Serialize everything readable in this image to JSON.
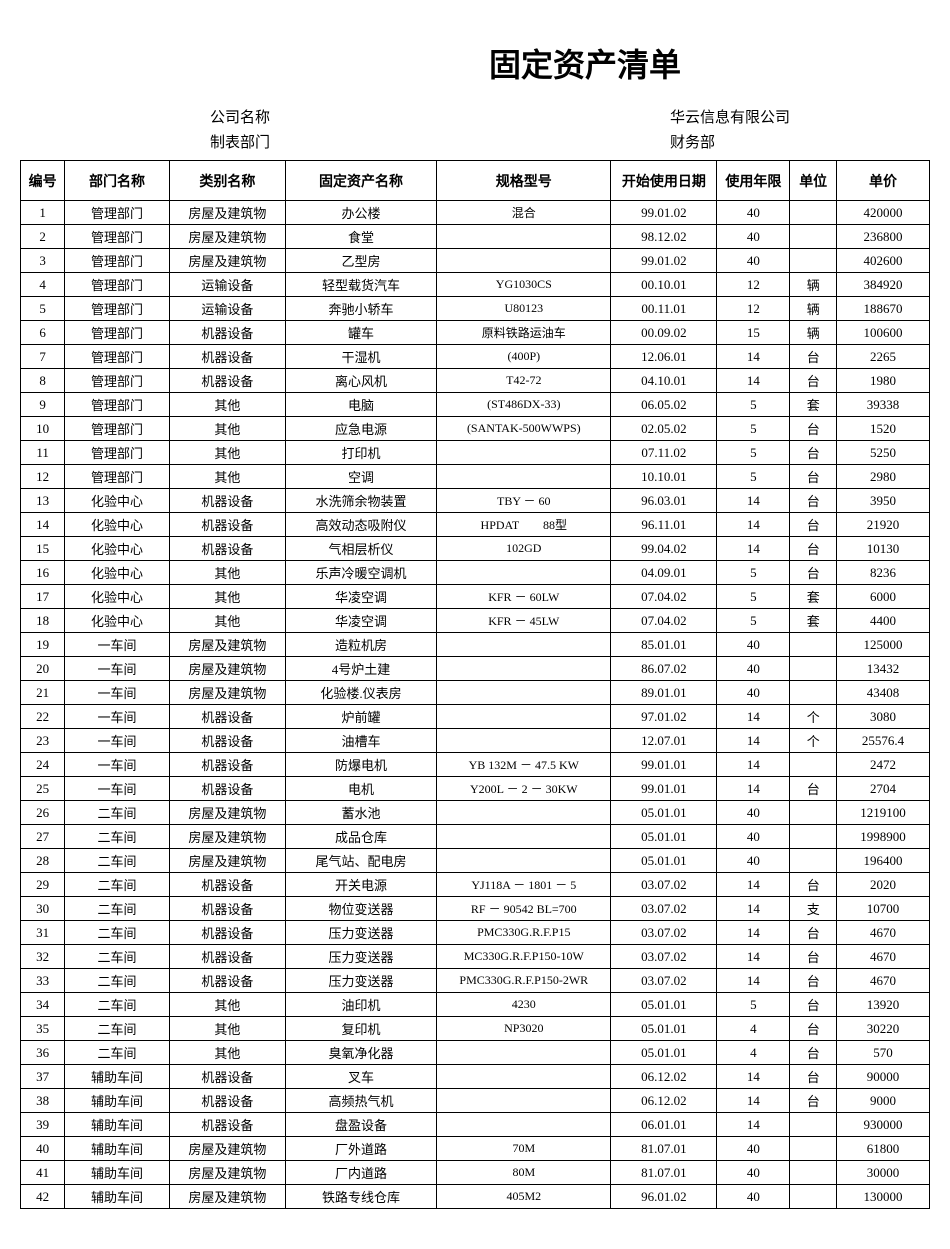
{
  "title": "固定资产清单",
  "meta": {
    "company_label": "公司名称",
    "company_value": "华云信息有限公司",
    "dept_label": "制表部门",
    "dept_value": "财务部"
  },
  "headers": {
    "id": "编号",
    "dept": "部门名称",
    "category": "类别名称",
    "asset": "固定资产名称",
    "spec": "规格型号",
    "date": "开始使用日期",
    "life": "使用年限",
    "unit": "单位",
    "price": "单价"
  },
  "rows": [
    {
      "id": "1",
      "dept": "管理部门",
      "cat": "房屋及建筑物",
      "asset": "办公楼",
      "spec": "混合",
      "date": "99.01.02",
      "life": "40",
      "unit": "",
      "price": "420000"
    },
    {
      "id": "2",
      "dept": "管理部门",
      "cat": "房屋及建筑物",
      "asset": "食堂",
      "spec": "",
      "date": "98.12.02",
      "life": "40",
      "unit": "",
      "price": "236800"
    },
    {
      "id": "3",
      "dept": "管理部门",
      "cat": "房屋及建筑物",
      "asset": "乙型房",
      "spec": "",
      "date": "99.01.02",
      "life": "40",
      "unit": "",
      "price": "402600"
    },
    {
      "id": "4",
      "dept": "管理部门",
      "cat": "运输设备",
      "asset": "轻型载货汽车",
      "spec": "YG1030CS",
      "date": "00.10.01",
      "life": "12",
      "unit": "辆",
      "price": "384920"
    },
    {
      "id": "5",
      "dept": "管理部门",
      "cat": "运输设备",
      "asset": "奔驰小轿车",
      "spec": "U80123",
      "date": "00.11.01",
      "life": "12",
      "unit": "辆",
      "price": "188670"
    },
    {
      "id": "6",
      "dept": "管理部门",
      "cat": "机器设备",
      "asset": "罐车",
      "spec": "原料铁路运油车",
      "date": "00.09.02",
      "life": "15",
      "unit": "辆",
      "price": "100600"
    },
    {
      "id": "7",
      "dept": "管理部门",
      "cat": "机器设备",
      "asset": "干湿机",
      "spec": "(400P)",
      "date": "12.06.01",
      "life": "14",
      "unit": "台",
      "price": "2265"
    },
    {
      "id": "8",
      "dept": "管理部门",
      "cat": "机器设备",
      "asset": "离心风机",
      "spec": "T42-72",
      "date": "04.10.01",
      "life": "14",
      "unit": "台",
      "price": "1980"
    },
    {
      "id": "9",
      "dept": "管理部门",
      "cat": "其他",
      "asset": "电脑",
      "spec": "(ST486DX-33)",
      "date": "06.05.02",
      "life": "5",
      "unit": "套",
      "price": "39338"
    },
    {
      "id": "10",
      "dept": "管理部门",
      "cat": "其他",
      "asset": "应急电源",
      "spec": "(SANTAK-500WWPS)",
      "date": "02.05.02",
      "life": "5",
      "unit": "台",
      "price": "1520"
    },
    {
      "id": "11",
      "dept": "管理部门",
      "cat": "其他",
      "asset": "打印机",
      "spec": "",
      "date": "07.11.02",
      "life": "5",
      "unit": "台",
      "price": "5250"
    },
    {
      "id": "12",
      "dept": "管理部门",
      "cat": "其他",
      "asset": "空调",
      "spec": "",
      "date": "10.10.01",
      "life": "5",
      "unit": "台",
      "price": "2980"
    },
    {
      "id": "13",
      "dept": "化验中心",
      "cat": "机器设备",
      "asset": "水洗筛余物装置",
      "spec": "TBY － 60",
      "date": "96.03.01",
      "life": "14",
      "unit": "台",
      "price": "3950"
    },
    {
      "id": "14",
      "dept": "化验中心",
      "cat": "机器设备",
      "asset": "高效动态吸附仪",
      "spec": "HPDAT　　88型",
      "date": "96.11.01",
      "life": "14",
      "unit": "台",
      "price": "21920"
    },
    {
      "id": "15",
      "dept": "化验中心",
      "cat": "机器设备",
      "asset": "气相层析仪",
      "spec": "102GD",
      "date": "99.04.02",
      "life": "14",
      "unit": "台",
      "price": "10130"
    },
    {
      "id": "16",
      "dept": "化验中心",
      "cat": "其他",
      "asset": "乐声冷暖空调机",
      "spec": "",
      "date": "04.09.01",
      "life": "5",
      "unit": "台",
      "price": "8236"
    },
    {
      "id": "17",
      "dept": "化验中心",
      "cat": "其他",
      "asset": "华凌空调",
      "spec": "KFR － 60LW",
      "date": "07.04.02",
      "life": "5",
      "unit": "套",
      "price": "6000"
    },
    {
      "id": "18",
      "dept": "化验中心",
      "cat": "其他",
      "asset": "华凌空调",
      "spec": "KFR － 45LW",
      "date": "07.04.02",
      "life": "5",
      "unit": "套",
      "price": "4400"
    },
    {
      "id": "19",
      "dept": "一车间",
      "cat": "房屋及建筑物",
      "asset": "造粒机房",
      "spec": "",
      "date": "85.01.01",
      "life": "40",
      "unit": "",
      "price": "125000"
    },
    {
      "id": "20",
      "dept": "一车间",
      "cat": "房屋及建筑物",
      "asset": "4号炉土建",
      "spec": "",
      "date": "86.07.02",
      "life": "40",
      "unit": "",
      "price": "13432"
    },
    {
      "id": "21",
      "dept": "一车间",
      "cat": "房屋及建筑物",
      "asset": "化验楼.仪表房",
      "spec": "",
      "date": "89.01.01",
      "life": "40",
      "unit": "",
      "price": "43408"
    },
    {
      "id": "22",
      "dept": "一车间",
      "cat": "机器设备",
      "asset": "炉前罐",
      "spec": "",
      "date": "97.01.02",
      "life": "14",
      "unit": "个",
      "price": "3080"
    },
    {
      "id": "23",
      "dept": "一车间",
      "cat": "机器设备",
      "asset": "油槽车",
      "spec": "",
      "date": "12.07.01",
      "life": "14",
      "unit": "个",
      "price": "25576.4"
    },
    {
      "id": "24",
      "dept": "一车间",
      "cat": "机器设备",
      "asset": "防爆电机",
      "spec": "YB 132M － 47.5 KW",
      "date": "99.01.01",
      "life": "14",
      "unit": "",
      "price": "2472"
    },
    {
      "id": "25",
      "dept": "一车间",
      "cat": "机器设备",
      "asset": "电机",
      "spec": "Y200L － 2 － 30KW",
      "date": "99.01.01",
      "life": "14",
      "unit": "台",
      "price": "2704"
    },
    {
      "id": "26",
      "dept": "二车间",
      "cat": "房屋及建筑物",
      "asset": "蓄水池",
      "spec": "",
      "date": "05.01.01",
      "life": "40",
      "unit": "",
      "price": "1219100"
    },
    {
      "id": "27",
      "dept": "二车间",
      "cat": "房屋及建筑物",
      "asset": "成品仓库",
      "spec": "",
      "date": "05.01.01",
      "life": "40",
      "unit": "",
      "price": "1998900"
    },
    {
      "id": "28",
      "dept": "二车间",
      "cat": "房屋及建筑物",
      "asset": "尾气站、配电房",
      "spec": "",
      "date": "05.01.01",
      "life": "40",
      "unit": "",
      "price": "196400"
    },
    {
      "id": "29",
      "dept": "二车间",
      "cat": "机器设备",
      "asset": "开关电源",
      "spec": "YJ118A － 1801 － 5",
      "date": "03.07.02",
      "life": "14",
      "unit": "台",
      "price": "2020"
    },
    {
      "id": "30",
      "dept": "二车间",
      "cat": "机器设备",
      "asset": "物位变送器",
      "spec": "RF － 90542 BL=700",
      "date": "03.07.02",
      "life": "14",
      "unit": "支",
      "price": "10700"
    },
    {
      "id": "31",
      "dept": "二车间",
      "cat": "机器设备",
      "asset": "压力变送器",
      "spec": "PMC330G.R.F.P15",
      "date": "03.07.02",
      "life": "14",
      "unit": "台",
      "price": "4670"
    },
    {
      "id": "32",
      "dept": "二车间",
      "cat": "机器设备",
      "asset": "压力变送器",
      "spec": "MC330G.R.F.P150-10W",
      "date": "03.07.02",
      "life": "14",
      "unit": "台",
      "price": "4670"
    },
    {
      "id": "33",
      "dept": "二车间",
      "cat": "机器设备",
      "asset": "压力变送器",
      "spec": "PMC330G.R.F.P150-2WR",
      "date": "03.07.02",
      "life": "14",
      "unit": "台",
      "price": "4670"
    },
    {
      "id": "34",
      "dept": "二车间",
      "cat": "其他",
      "asset": "油印机",
      "spec": "4230",
      "date": "05.01.01",
      "life": "5",
      "unit": "台",
      "price": "13920"
    },
    {
      "id": "35",
      "dept": "二车间",
      "cat": "其他",
      "asset": "复印机",
      "spec": "NP3020",
      "date": "05.01.01",
      "life": "4",
      "unit": "台",
      "price": "30220"
    },
    {
      "id": "36",
      "dept": "二车间",
      "cat": "其他",
      "asset": "臭氧净化器",
      "spec": "",
      "date": "05.01.01",
      "life": "4",
      "unit": "台",
      "price": "570"
    },
    {
      "id": "37",
      "dept": "辅助车间",
      "cat": "机器设备",
      "asset": "叉车",
      "spec": "",
      "date": "06.12.02",
      "life": "14",
      "unit": "台",
      "price": "90000"
    },
    {
      "id": "38",
      "dept": "辅助车间",
      "cat": "机器设备",
      "asset": "高频热气机",
      "spec": "",
      "date": "06.12.02",
      "life": "14",
      "unit": "台",
      "price": "9000"
    },
    {
      "id": "39",
      "dept": "辅助车间",
      "cat": "机器设备",
      "asset": "盘盈设备",
      "spec": "",
      "date": "06.01.01",
      "life": "14",
      "unit": "",
      "price": "930000"
    },
    {
      "id": "40",
      "dept": "辅助车间",
      "cat": "房屋及建筑物",
      "asset": "厂外道路",
      "spec": "70M",
      "date": "81.07.01",
      "life": "40",
      "unit": "",
      "price": "61800"
    },
    {
      "id": "41",
      "dept": "辅助车间",
      "cat": "房屋及建筑物",
      "asset": "厂内道路",
      "spec": "80M",
      "date": "81.07.01",
      "life": "40",
      "unit": "",
      "price": "30000"
    },
    {
      "id": "42",
      "dept": "辅助车间",
      "cat": "房屋及建筑物",
      "asset": "铁路专线仓库",
      "spec": "405M2",
      "date": "96.01.02",
      "life": "40",
      "unit": "",
      "price": "130000"
    }
  ]
}
